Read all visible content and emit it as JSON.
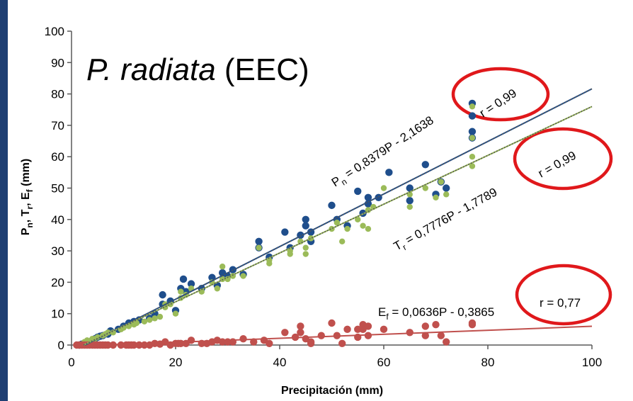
{
  "chart_data": {
    "type": "scatter",
    "title_species": "P. radiata",
    "title_suffix": " (EEC)",
    "xlabel": "Precipitación (mm)",
    "ylabel_parts": [
      "P",
      "n",
      ", T",
      "r",
      ", E",
      "f",
      " (mm)"
    ],
    "xlim": [
      0,
      100
    ],
    "ylim": [
      0,
      100
    ],
    "x_ticks": [
      "0",
      "20",
      "40",
      "60",
      "80",
      "100"
    ],
    "y_ticks": [
      "0",
      "10",
      "20",
      "30",
      "40",
      "50",
      "60",
      "70",
      "80",
      "90",
      "100"
    ],
    "colors": {
      "Pn": "#1f4e8c",
      "Tr": "#9bbb59",
      "Ef": "#c0504d",
      "ring": "#e0181b"
    },
    "equations": {
      "Pn": {
        "sym": "P",
        "sub": "n",
        "text": " = 0,8379P - 2,1638",
        "slope": 0.8379,
        "intercept": -2.1638,
        "r": "r = 0,99"
      },
      "Tr": {
        "sym": "T",
        "sub": "r",
        "text": " = 0,7776P - 1,7789",
        "slope": 0.7776,
        "intercept": -1.7789,
        "r": "r = 0,99"
      },
      "Ef": {
        "sym": "E",
        "sub": "f",
        "text": " = 0,0636P - 0,3865",
        "slope": 0.0636,
        "intercept": -0.3865,
        "r": "r = 0,77"
      }
    },
    "series": [
      {
        "key": "Pn",
        "points": [
          [
            1.5,
            0
          ],
          [
            2,
            0.3
          ],
          [
            2.5,
            0.5
          ],
          [
            3,
            0.8
          ],
          [
            3.5,
            1
          ],
          [
            4,
            1.5
          ],
          [
            4.5,
            2
          ],
          [
            5,
            2.5
          ],
          [
            5.5,
            2.8
          ],
          [
            6,
            3
          ],
          [
            7,
            3.5
          ],
          [
            7.5,
            4.5
          ],
          [
            9,
            5
          ],
          [
            10,
            6
          ],
          [
            11,
            7
          ],
          [
            12,
            7.5
          ],
          [
            13,
            8
          ],
          [
            15,
            8.5
          ],
          [
            16,
            10
          ],
          [
            17.5,
            13
          ],
          [
            17.5,
            16
          ],
          [
            19,
            14
          ],
          [
            20,
            11
          ],
          [
            21,
            18
          ],
          [
            21.5,
            21
          ],
          [
            22,
            17
          ],
          [
            23,
            19.5
          ],
          [
            25,
            18
          ],
          [
            27,
            21.5
          ],
          [
            28,
            19
          ],
          [
            29,
            23
          ],
          [
            30,
            22
          ],
          [
            31,
            24
          ],
          [
            33,
            22.5
          ],
          [
            36,
            33
          ],
          [
            36,
            31
          ],
          [
            38,
            28
          ],
          [
            41,
            36
          ],
          [
            42,
            31
          ],
          [
            44,
            35
          ],
          [
            45,
            40
          ],
          [
            45,
            38
          ],
          [
            46,
            36
          ],
          [
            46,
            33
          ],
          [
            50,
            44.5
          ],
          [
            51,
            40
          ],
          [
            53,
            38
          ],
          [
            55,
            49
          ],
          [
            56,
            42
          ],
          [
            57,
            47
          ],
          [
            57,
            45
          ],
          [
            59,
            47
          ],
          [
            61,
            55
          ],
          [
            65,
            50
          ],
          [
            65,
            46
          ],
          [
            68,
            57.5
          ],
          [
            70,
            48
          ],
          [
            71,
            52
          ],
          [
            72,
            50
          ],
          [
            77,
            77
          ],
          [
            77,
            73
          ],
          [
            77,
            68
          ],
          [
            77,
            66
          ]
        ]
      },
      {
        "key": "Tr",
        "points": [
          [
            1.5,
            0
          ],
          [
            2,
            0.3
          ],
          [
            2.5,
            1
          ],
          [
            3,
            1.5
          ],
          [
            3.5,
            1
          ],
          [
            4,
            2
          ],
          [
            4.5,
            2
          ],
          [
            5,
            2.5
          ],
          [
            6,
            3
          ],
          [
            6.5,
            3.5
          ],
          [
            7,
            4
          ],
          [
            8,
            4
          ],
          [
            9.5,
            5
          ],
          [
            10,
            5.5
          ],
          [
            11,
            6
          ],
          [
            12,
            6.5
          ],
          [
            12.5,
            7
          ],
          [
            14,
            7.5
          ],
          [
            15,
            8
          ],
          [
            16,
            8.5
          ],
          [
            17,
            9
          ],
          [
            18,
            13
          ],
          [
            18,
            12
          ],
          [
            19,
            13
          ],
          [
            20,
            10
          ],
          [
            21,
            15
          ],
          [
            21,
            17
          ],
          [
            22,
            16
          ],
          [
            23,
            18
          ],
          [
            25,
            17
          ],
          [
            27,
            20
          ],
          [
            28,
            18
          ],
          [
            29,
            21
          ],
          [
            29,
            25
          ],
          [
            30,
            21
          ],
          [
            31,
            22
          ],
          [
            33,
            22
          ],
          [
            36,
            31
          ],
          [
            38,
            26
          ],
          [
            38,
            27
          ],
          [
            42,
            29
          ],
          [
            42,
            30
          ],
          [
            44,
            33
          ],
          [
            45,
            29
          ],
          [
            45,
            31
          ],
          [
            46,
            34
          ],
          [
            50,
            37
          ],
          [
            51,
            39
          ],
          [
            52,
            33
          ],
          [
            53,
            37
          ],
          [
            55,
            40
          ],
          [
            56,
            38
          ],
          [
            57,
            43
          ],
          [
            57,
            37
          ],
          [
            58,
            44
          ],
          [
            60,
            50
          ],
          [
            65,
            44
          ],
          [
            65,
            48
          ],
          [
            68,
            50
          ],
          [
            70,
            47
          ],
          [
            71,
            52
          ],
          [
            72,
            48
          ],
          [
            77,
            76
          ],
          [
            77,
            66
          ],
          [
            77,
            60
          ],
          [
            77,
            57
          ]
        ]
      },
      {
        "key": "Ef",
        "points": [
          [
            1,
            0
          ],
          [
            1.5,
            0
          ],
          [
            2,
            0
          ],
          [
            2.5,
            0
          ],
          [
            3,
            0
          ],
          [
            3.5,
            0
          ],
          [
            4,
            0
          ],
          [
            4.5,
            0
          ],
          [
            5,
            0
          ],
          [
            5.5,
            0
          ],
          [
            6,
            0
          ],
          [
            6.5,
            0
          ],
          [
            7,
            0
          ],
          [
            8,
            0
          ],
          [
            9.5,
            0
          ],
          [
            10.5,
            0
          ],
          [
            11,
            0
          ],
          [
            11.5,
            0
          ],
          [
            12,
            0
          ],
          [
            13,
            0
          ],
          [
            14,
            0
          ],
          [
            15,
            0
          ],
          [
            16,
            0.5
          ],
          [
            17,
            0.3
          ],
          [
            18,
            1
          ],
          [
            19,
            0
          ],
          [
            20,
            0.5
          ],
          [
            20.5,
            0.5
          ],
          [
            21,
            0.5
          ],
          [
            22,
            0.5
          ],
          [
            23,
            1.5
          ],
          [
            25,
            0.5
          ],
          [
            26,
            0.5
          ],
          [
            27,
            1
          ],
          [
            28,
            1.5
          ],
          [
            29,
            1
          ],
          [
            30,
            1
          ],
          [
            31,
            1
          ],
          [
            33,
            2
          ],
          [
            35,
            1
          ],
          [
            37,
            1.5
          ],
          [
            38,
            0.5
          ],
          [
            41,
            4
          ],
          [
            43,
            2.5
          ],
          [
            44,
            6
          ],
          [
            44,
            4
          ],
          [
            45,
            2
          ],
          [
            46,
            1
          ],
          [
            46,
            0.5
          ],
          [
            48,
            3
          ],
          [
            50,
            7
          ],
          [
            51,
            3
          ],
          [
            52,
            0.5
          ],
          [
            53,
            5
          ],
          [
            55,
            5
          ],
          [
            55,
            2.5
          ],
          [
            56,
            6.5
          ],
          [
            56,
            5
          ],
          [
            57,
            3
          ],
          [
            57,
            6
          ],
          [
            60,
            5
          ],
          [
            65,
            4
          ],
          [
            68,
            3
          ],
          [
            68,
            6
          ],
          [
            70,
            6.5
          ],
          [
            71,
            3
          ],
          [
            72,
            1
          ],
          [
            77,
            7
          ],
          [
            77,
            6.5
          ]
        ]
      }
    ]
  }
}
